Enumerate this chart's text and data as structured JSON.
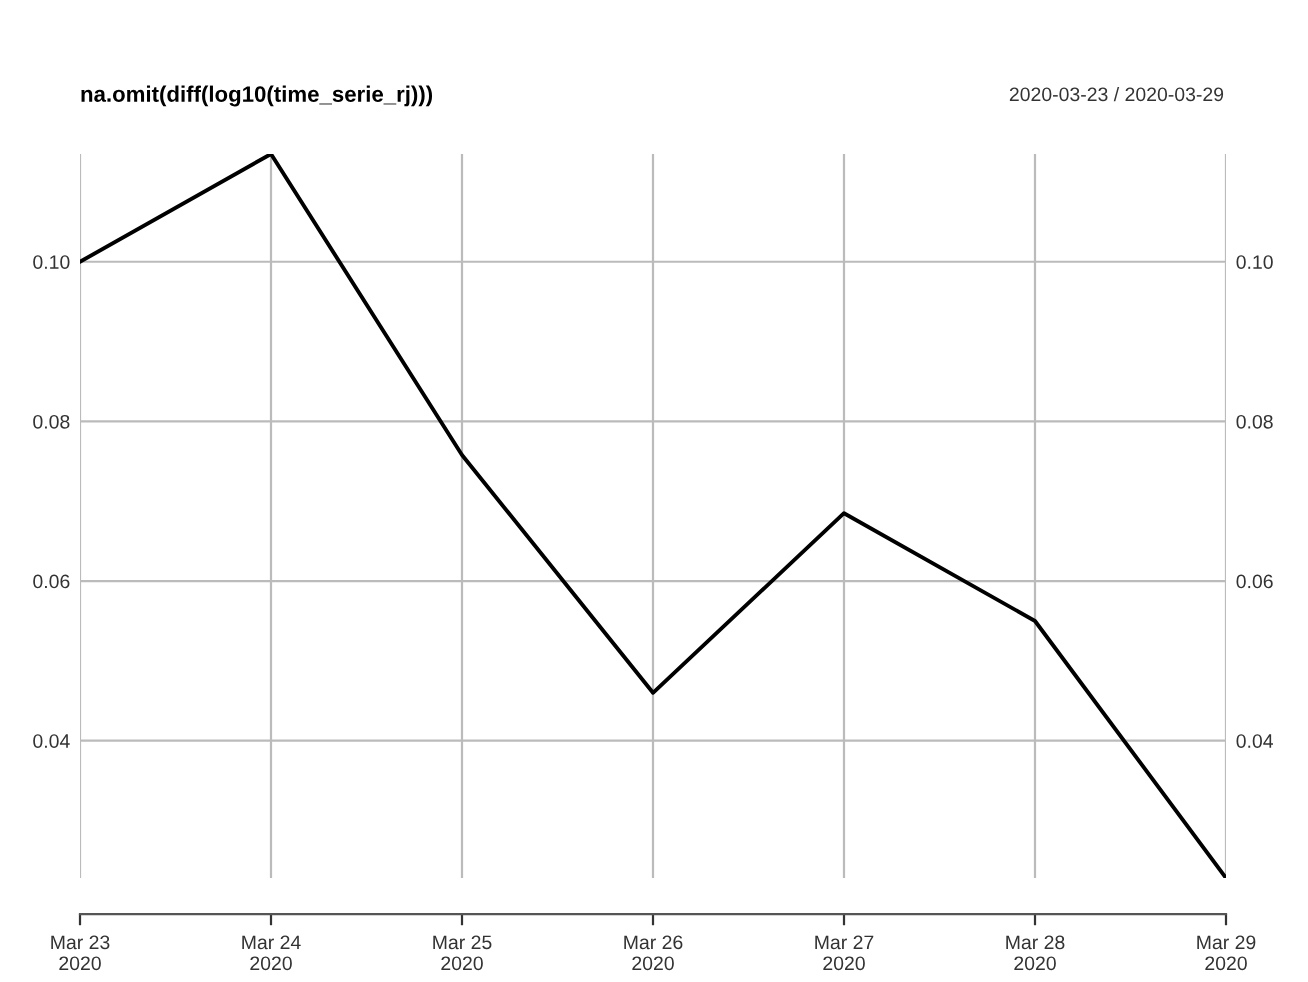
{
  "chart_data": {
    "type": "line",
    "title": "na.omit(diff(log10(time_serie_rj)))",
    "subtitle": "2020-03-23 / 2020-03-29",
    "x": [
      "2020-03-23",
      "2020-03-24",
      "2020-03-25",
      "2020-03-26",
      "2020-03-27",
      "2020-03-28",
      "2020-03-29"
    ],
    "series": [
      {
        "color": "#000000",
        "values": [
          0.1,
          0.1135,
          0.0758,
          0.046,
          0.0685,
          0.055,
          0.0228
        ]
      }
    ],
    "xlim": [
      "2020-03-23",
      "2020-03-29"
    ],
    "xticks": [
      {
        "value": "2020-03-23",
        "label": "Mar 23\n2020"
      },
      {
        "value": "2020-03-24",
        "label": "Mar 24\n2020"
      },
      {
        "value": "2020-03-25",
        "label": "Mar 25\n2020"
      },
      {
        "value": "2020-03-26",
        "label": "Mar 26\n2020"
      },
      {
        "value": "2020-03-27",
        "label": "Mar 27\n2020"
      },
      {
        "value": "2020-03-28",
        "label": "Mar 28\n2020"
      },
      {
        "value": "2020-03-29",
        "label": "Mar 29\n2020"
      }
    ],
    "ylim": [
      0.0228,
      0.1135
    ],
    "yticks": [
      {
        "value": 0.04,
        "label": "0.04"
      },
      {
        "value": 0.06,
        "label": "0.06"
      },
      {
        "value": 0.08,
        "label": "0.08"
      },
      {
        "value": 0.1,
        "label": "0.10"
      }
    ],
    "y2lim": [
      0.0228,
      0.1135
    ],
    "y2ticks": [
      {
        "value": 0.04,
        "label": "0.04"
      },
      {
        "value": 0.06,
        "label": "0.06"
      },
      {
        "value": 0.08,
        "label": "0.08"
      },
      {
        "value": 0.1,
        "label": "0.10"
      }
    ],
    "grid": true,
    "legend": false,
    "line_style": "solid",
    "marker": "none"
  }
}
